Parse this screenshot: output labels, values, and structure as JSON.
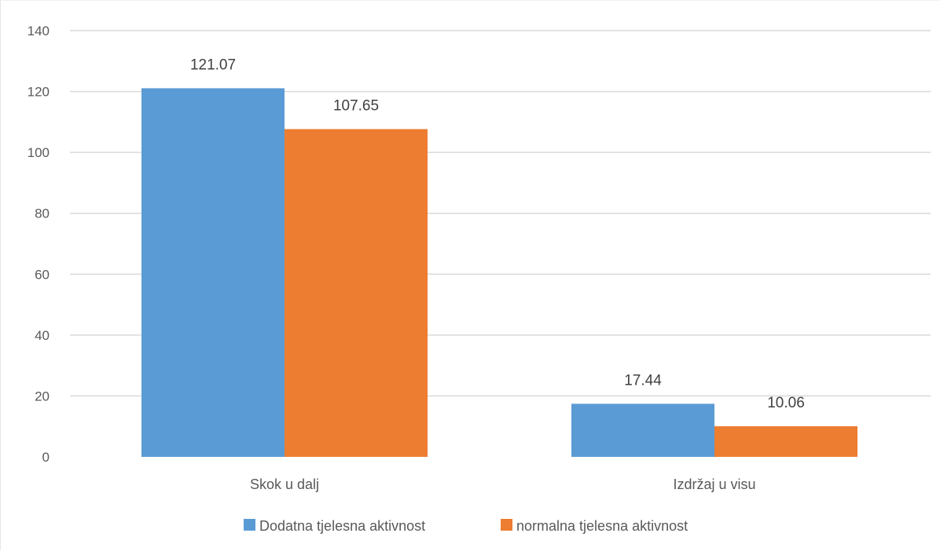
{
  "chart_data": {
    "type": "bar",
    "title": "",
    "xlabel": "",
    "ylabel": "",
    "categories": [
      "Skok u dalj",
      "Izdržaj u visu"
    ],
    "series": [
      {
        "name": "Dodatna tjelesna aktivnost",
        "values": [
          121.07,
          17.44
        ],
        "labels": [
          "121.07",
          "17.44"
        ],
        "color": "#5b9bd5"
      },
      {
        "name": "normalna tjelesna aktivnost",
        "values": [
          107.65,
          10.06
        ],
        "labels": [
          "107.65",
          "10.06"
        ],
        "color": "#ed7d31"
      }
    ],
    "ylim": [
      0,
      140
    ],
    "yticks": [
      0,
      20,
      40,
      60,
      80,
      100,
      120,
      140
    ],
    "ytick_labels": [
      "0",
      "20",
      "40",
      "60",
      "80",
      "100",
      "120",
      "140"
    ],
    "grid": true,
    "legend_position": "bottom"
  }
}
